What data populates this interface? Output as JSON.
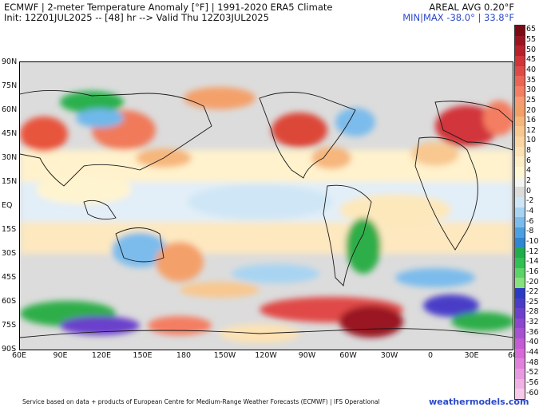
{
  "header": {
    "title": "ECMWF | 2-meter Temperature Anomaly [°F] | 1991-2020 ERA5 Climate",
    "init_line": "Init: 12Z01JUL2025 -- [48] hr --> Valid Thu 12Z03JUL2025",
    "areal": "AREAL AVG 0.20°F",
    "minmax": "MIN|MAX -38.0° | 33.8°F"
  },
  "map": {
    "lat_labels": [
      "90N",
      "75N",
      "60N",
      "45N",
      "30N",
      "15N",
      "EQ",
      "15S",
      "30S",
      "45S",
      "60S",
      "75S",
      "90S"
    ],
    "lon_labels": [
      "60E",
      "90E",
      "120E",
      "150E",
      "180",
      "150W",
      "120W",
      "90W",
      "60W",
      "30W",
      "0",
      "30E",
      "60"
    ]
  },
  "colorbar": {
    "labels": [
      "65",
      "55",
      "50",
      "45",
      "40",
      "35",
      "30",
      "25",
      "20",
      "16",
      "12",
      "10",
      "8",
      "6",
      "4",
      "2",
      "0",
      "-2",
      "-4",
      "-6",
      "-8",
      "-10",
      "-12",
      "-14",
      "-16",
      "-20",
      "-22",
      "-25",
      "-28",
      "-32",
      "-36",
      "-40",
      "-44",
      "-48",
      "-52",
      "-56",
      "-60"
    ],
    "colors": [
      "#7a0a14",
      "#9a1420",
      "#b8202a",
      "#d2343a",
      "#e04a46",
      "#ec6454",
      "#f47e62",
      "#f89a72",
      "#f2a066",
      "#f6b67c",
      "#f8c890",
      "#fad6a2",
      "#fce2b4",
      "#fdeec6",
      "#fff6d4",
      "#f4f4f0",
      "#dcdcdc",
      "#cfe6f6",
      "#a8d4f2",
      "#7cbcec",
      "#4aa0e0",
      "#2f86d2",
      "#1fae4a",
      "#30c054",
      "#5ad468",
      "#86e27c",
      "#2a3ac4",
      "#4a3cc8",
      "#6a40cc",
      "#8c46d0",
      "#a650d2",
      "#c45ad6",
      "#d86ad8",
      "#e082dc",
      "#e89ae0",
      "#f0b2e4",
      "#f6cae8"
    ]
  },
  "footer": "Service based on data + products of European Centre for Medium-Range Weather Forecasts (ECMWF) | IFS Operational",
  "brand": "weathermodels.com"
}
